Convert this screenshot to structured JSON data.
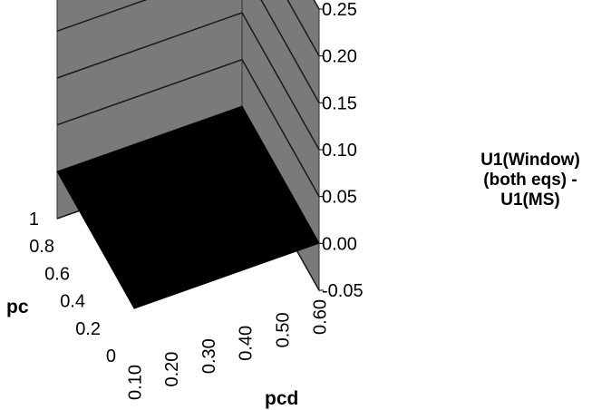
{
  "chart_data": {
    "type": "surface",
    "title": "",
    "legend_title": "U1(Window)\n(both eqs) -\nU1(MS)",
    "x_axis": {
      "label": "pcd",
      "ticks": [
        "0.10",
        "0.20",
        "0.30",
        "0.40",
        "0.50",
        "0.60"
      ],
      "range": [
        0.1,
        0.6
      ]
    },
    "y_axis": {
      "label": "pc",
      "ticks": [
        "0",
        "0.2",
        "0.4",
        "0.6",
        "0.8",
        "1"
      ],
      "range": [
        0,
        1
      ]
    },
    "z_axis": {
      "label": "",
      "ticks": [
        "-0.05",
        "0.00",
        "0.05",
        "0.10",
        "0.15",
        "0.20",
        "0.25"
      ],
      "range": [
        -0.05,
        0.25
      ]
    },
    "x": [
      0.1,
      0.2,
      0.3,
      0.4,
      0.5,
      0.6
    ],
    "y": [
      0,
      0.2,
      0.4,
      0.6,
      0.8,
      1
    ],
    "z": [
      [
        0,
        0,
        0,
        0,
        0,
        0
      ],
      [
        0,
        0,
        0,
        0,
        0,
        0
      ],
      [
        0,
        0,
        0,
        0,
        0,
        0
      ],
      [
        0,
        0,
        0,
        0,
        0,
        0
      ],
      [
        0,
        0,
        0,
        0,
        0,
        0
      ],
      [
        0,
        0,
        0,
        0,
        0,
        0
      ]
    ],
    "colors": {
      "surface": "#000000",
      "walls": "#7a7a7a",
      "gridlines": "#1a1a1a"
    }
  }
}
